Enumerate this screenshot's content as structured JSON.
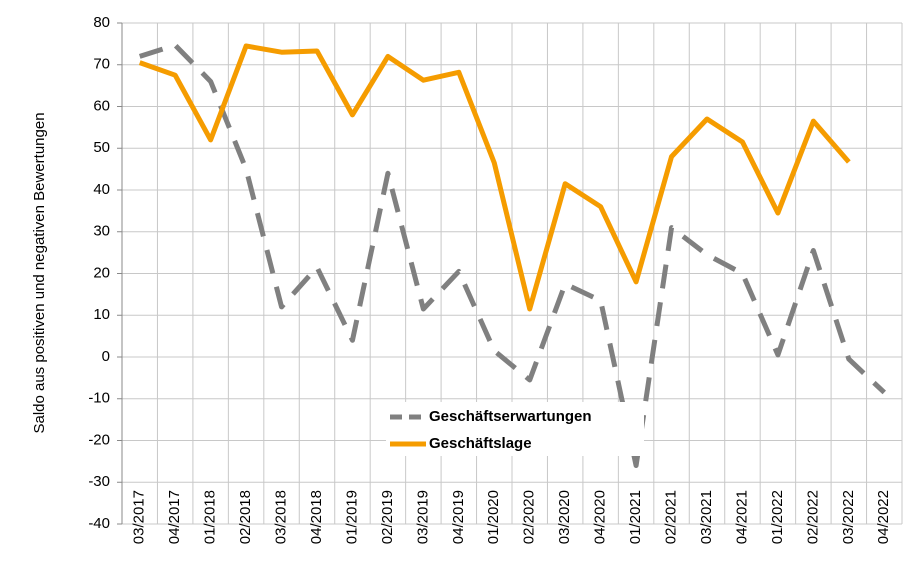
{
  "chart_data": {
    "type": "line",
    "y_label": "Saldo aus positiven und negativen Bewertungen",
    "categories": [
      "03/2017",
      "04/2017",
      "01/2018",
      "02/2018",
      "03/2018",
      "04/2018",
      "01/2019",
      "02/2019",
      "03/2019",
      "04/2019",
      "01/2020",
      "02/2020",
      "03/2020",
      "04/2020",
      "01/2021",
      "02/2021",
      "03/2021",
      "04/2021",
      "01/2022",
      "02/2022",
      "03/2022",
      "04/2022"
    ],
    "series": [
      {
        "name": "Geschäftserwartungen",
        "color": "#808080",
        "dash": true,
        "values": [
          72,
          74.7,
          66,
          45,
          12,
          21.5,
          4,
          44,
          11.5,
          20.5,
          1.5,
          -5.5,
          17.5,
          13.5,
          -26,
          31,
          24.5,
          20,
          0.5,
          25.5,
          -0.5,
          -8.5
        ]
      },
      {
        "name": "Geschäftslage",
        "color": "#f59c00",
        "dash": false,
        "values": [
          70.5,
          67.5,
          52,
          74.5,
          73,
          73.3,
          58,
          72,
          66.3,
          68.2,
          46.5,
          11.5,
          41.5,
          36,
          18,
          48,
          57,
          51.5,
          34.5,
          56.5,
          46.7,
          null
        ]
      }
    ],
    "ylim": [
      -40,
      80
    ],
    "yticks": [
      -40,
      -30,
      -20,
      -10,
      0,
      10,
      20,
      30,
      40,
      50,
      60,
      70,
      80
    ],
    "grid": true
  }
}
